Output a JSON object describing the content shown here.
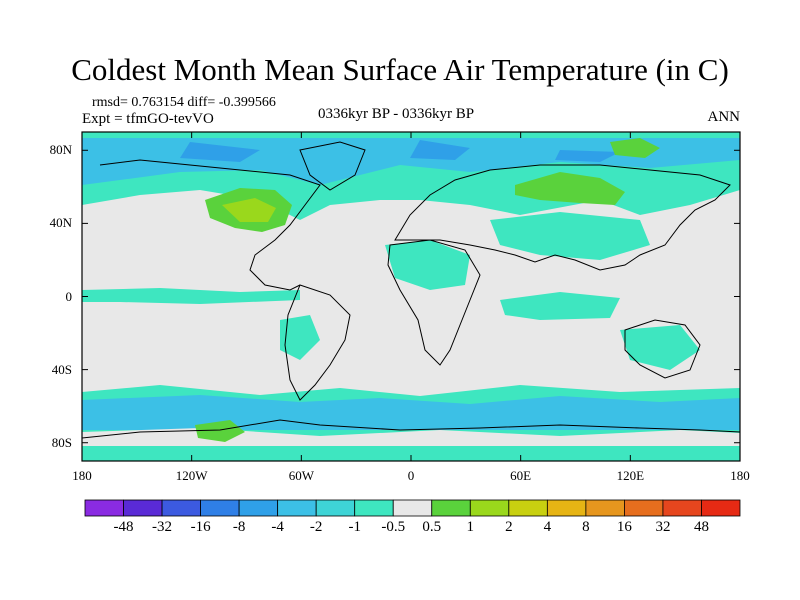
{
  "title": "Coldest Month Mean Surface Air Temperature (in C)",
  "stats": "rmsd= 0.763154 diff= -0.399566",
  "experiment": "Expt = tfmGO-tevVO",
  "period": "0336kyr BP - 0336kyr BP",
  "season": "ANN",
  "lat_ticks": [
    {
      "label": "80N",
      "lat": 80
    },
    {
      "label": "40N",
      "lat": 40
    },
    {
      "label": "0",
      "lat": 0
    },
    {
      "label": "40S",
      "lat": -40
    },
    {
      "label": "80S",
      "lat": -80
    }
  ],
  "lon_ticks": [
    {
      "label": "180",
      "lon": -180
    },
    {
      "label": "120W",
      "lon": -120
    },
    {
      "label": "60W",
      "lon": -60
    },
    {
      "label": "0",
      "lon": 0
    },
    {
      "label": "60E",
      "lon": 60
    },
    {
      "label": "120E",
      "lon": 120
    },
    {
      "label": "180",
      "lon": 180
    }
  ],
  "colorbar": {
    "labels": [
      "-48",
      "-32",
      "-16",
      "-8",
      "-4",
      "-2",
      "-1",
      "-0.5",
      "0.5",
      "1",
      "2",
      "4",
      "8",
      "16",
      "32",
      "48"
    ],
    "colors": [
      "#8a2be2",
      "#5a2ad6",
      "#3c5ae0",
      "#2f7fe6",
      "#2fa0e8",
      "#3cc0e6",
      "#3ed4d6",
      "#3ee6c0",
      "#e8e8e8",
      "#5ad23c",
      "#9ad81c",
      "#c8d010",
      "#e6b414",
      "#e6961e",
      "#e66e1e",
      "#e6461e",
      "#e62a14"
    ]
  },
  "colors": {
    "neutral": "#e8e8e8",
    "cool_light": "#3ee6c0",
    "cool_mid": "#3cc0e6",
    "cool_dark": "#2fa0e8",
    "warm_light": "#5ad23c",
    "warm_mid": "#9ad81c"
  }
}
